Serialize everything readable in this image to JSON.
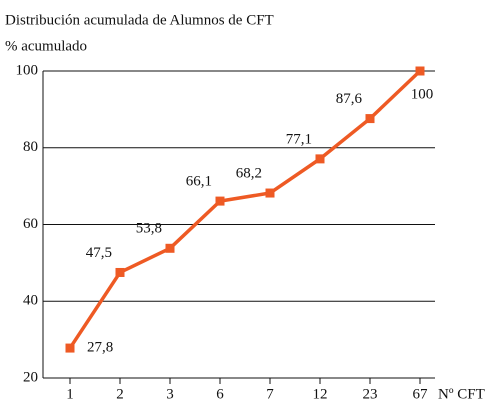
{
  "chart_data": {
    "type": "line",
    "title": "Distribución acumulada de Alumnos de CFT",
    "y_label": "% acumulado",
    "x_label": "Nº CFT",
    "categories": [
      "1",
      "2",
      "3",
      "6",
      "7",
      "12",
      "23",
      "67"
    ],
    "values": [
      27.8,
      47.5,
      53.8,
      66.1,
      68.2,
      77.1,
      87.6,
      100
    ],
    "value_labels": [
      "27,8",
      "47,5",
      "53,8",
      "66,1",
      "68,2",
      "77,1",
      "87,6",
      "100"
    ],
    "color": "#ee5a24",
    "ylim": [
      20,
      100
    ],
    "yticks": [
      20,
      40,
      60,
      80,
      100
    ],
    "grid": true
  }
}
